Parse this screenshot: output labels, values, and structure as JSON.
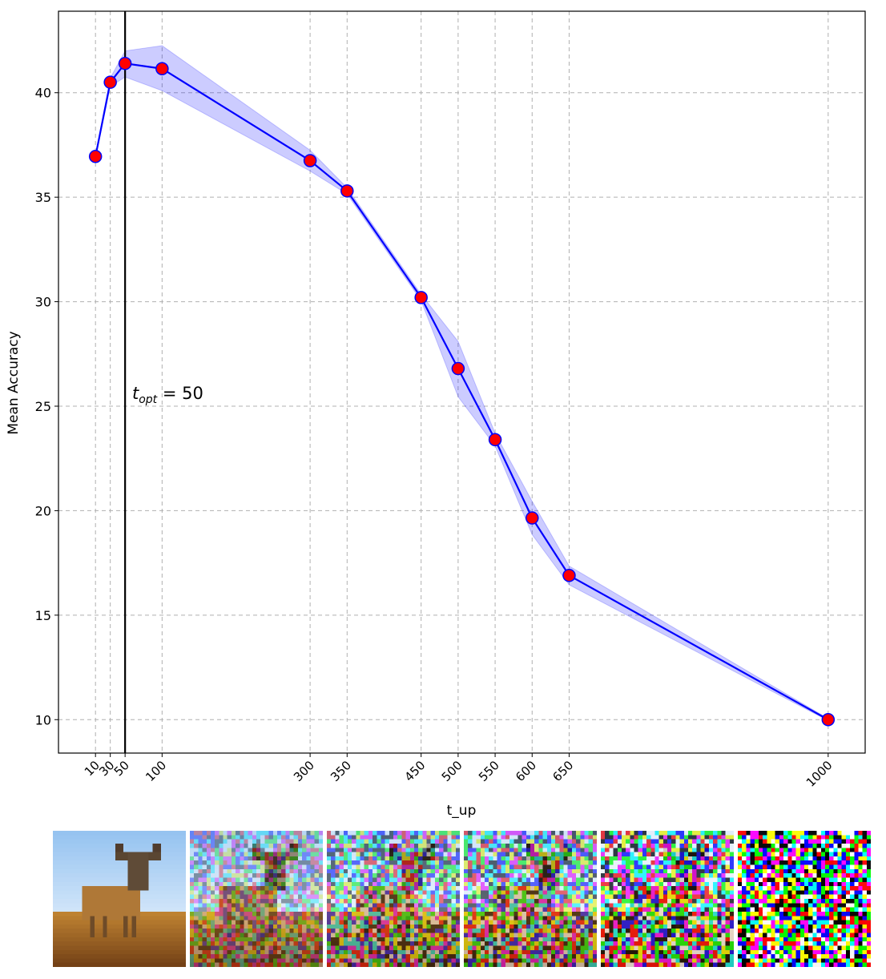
{
  "chart_data": {
    "type": "line",
    "xlabel": "t_up",
    "ylabel": "Mean Accuracy",
    "x_ticks": [
      10,
      30,
      50,
      100,
      300,
      350,
      450,
      500,
      550,
      600,
      650,
      1000
    ],
    "y_ticks": [
      10,
      15,
      20,
      25,
      30,
      35,
      40
    ],
    "xlim": [
      -40,
      1050
    ],
    "ylim": [
      8.4,
      43.9
    ],
    "grid": true,
    "series": [
      {
        "x": [
          10,
          30,
          50,
          100,
          300,
          350,
          450,
          500,
          550,
          600,
          650,
          1000
        ],
        "y": [
          36.95,
          40.5,
          41.4,
          41.15,
          36.75,
          35.3,
          30.2,
          26.8,
          23.4,
          19.65,
          16.9,
          10.0
        ],
        "y_lower": [
          36.9,
          40.3,
          40.75,
          40.1,
          36.25,
          35.15,
          30.05,
          25.45,
          23.1,
          18.85,
          16.45,
          9.95
        ],
        "y_upper": [
          37.0,
          40.7,
          42.0,
          42.25,
          37.25,
          35.45,
          30.35,
          28.1,
          23.7,
          20.45,
          17.35,
          10.05
        ],
        "line_color": "#0000ff",
        "marker_color": "#ff0000",
        "band_color": "#0000ff"
      }
    ],
    "vline": {
      "x": 50,
      "color": "#000000"
    },
    "annotation": {
      "base": "t",
      "subscript": "opt",
      "suffix": " = 50"
    }
  },
  "thumbnails": {
    "noise_levels": [
      0.0,
      0.33,
      0.5,
      0.55,
      0.72,
      0.95
    ]
  }
}
